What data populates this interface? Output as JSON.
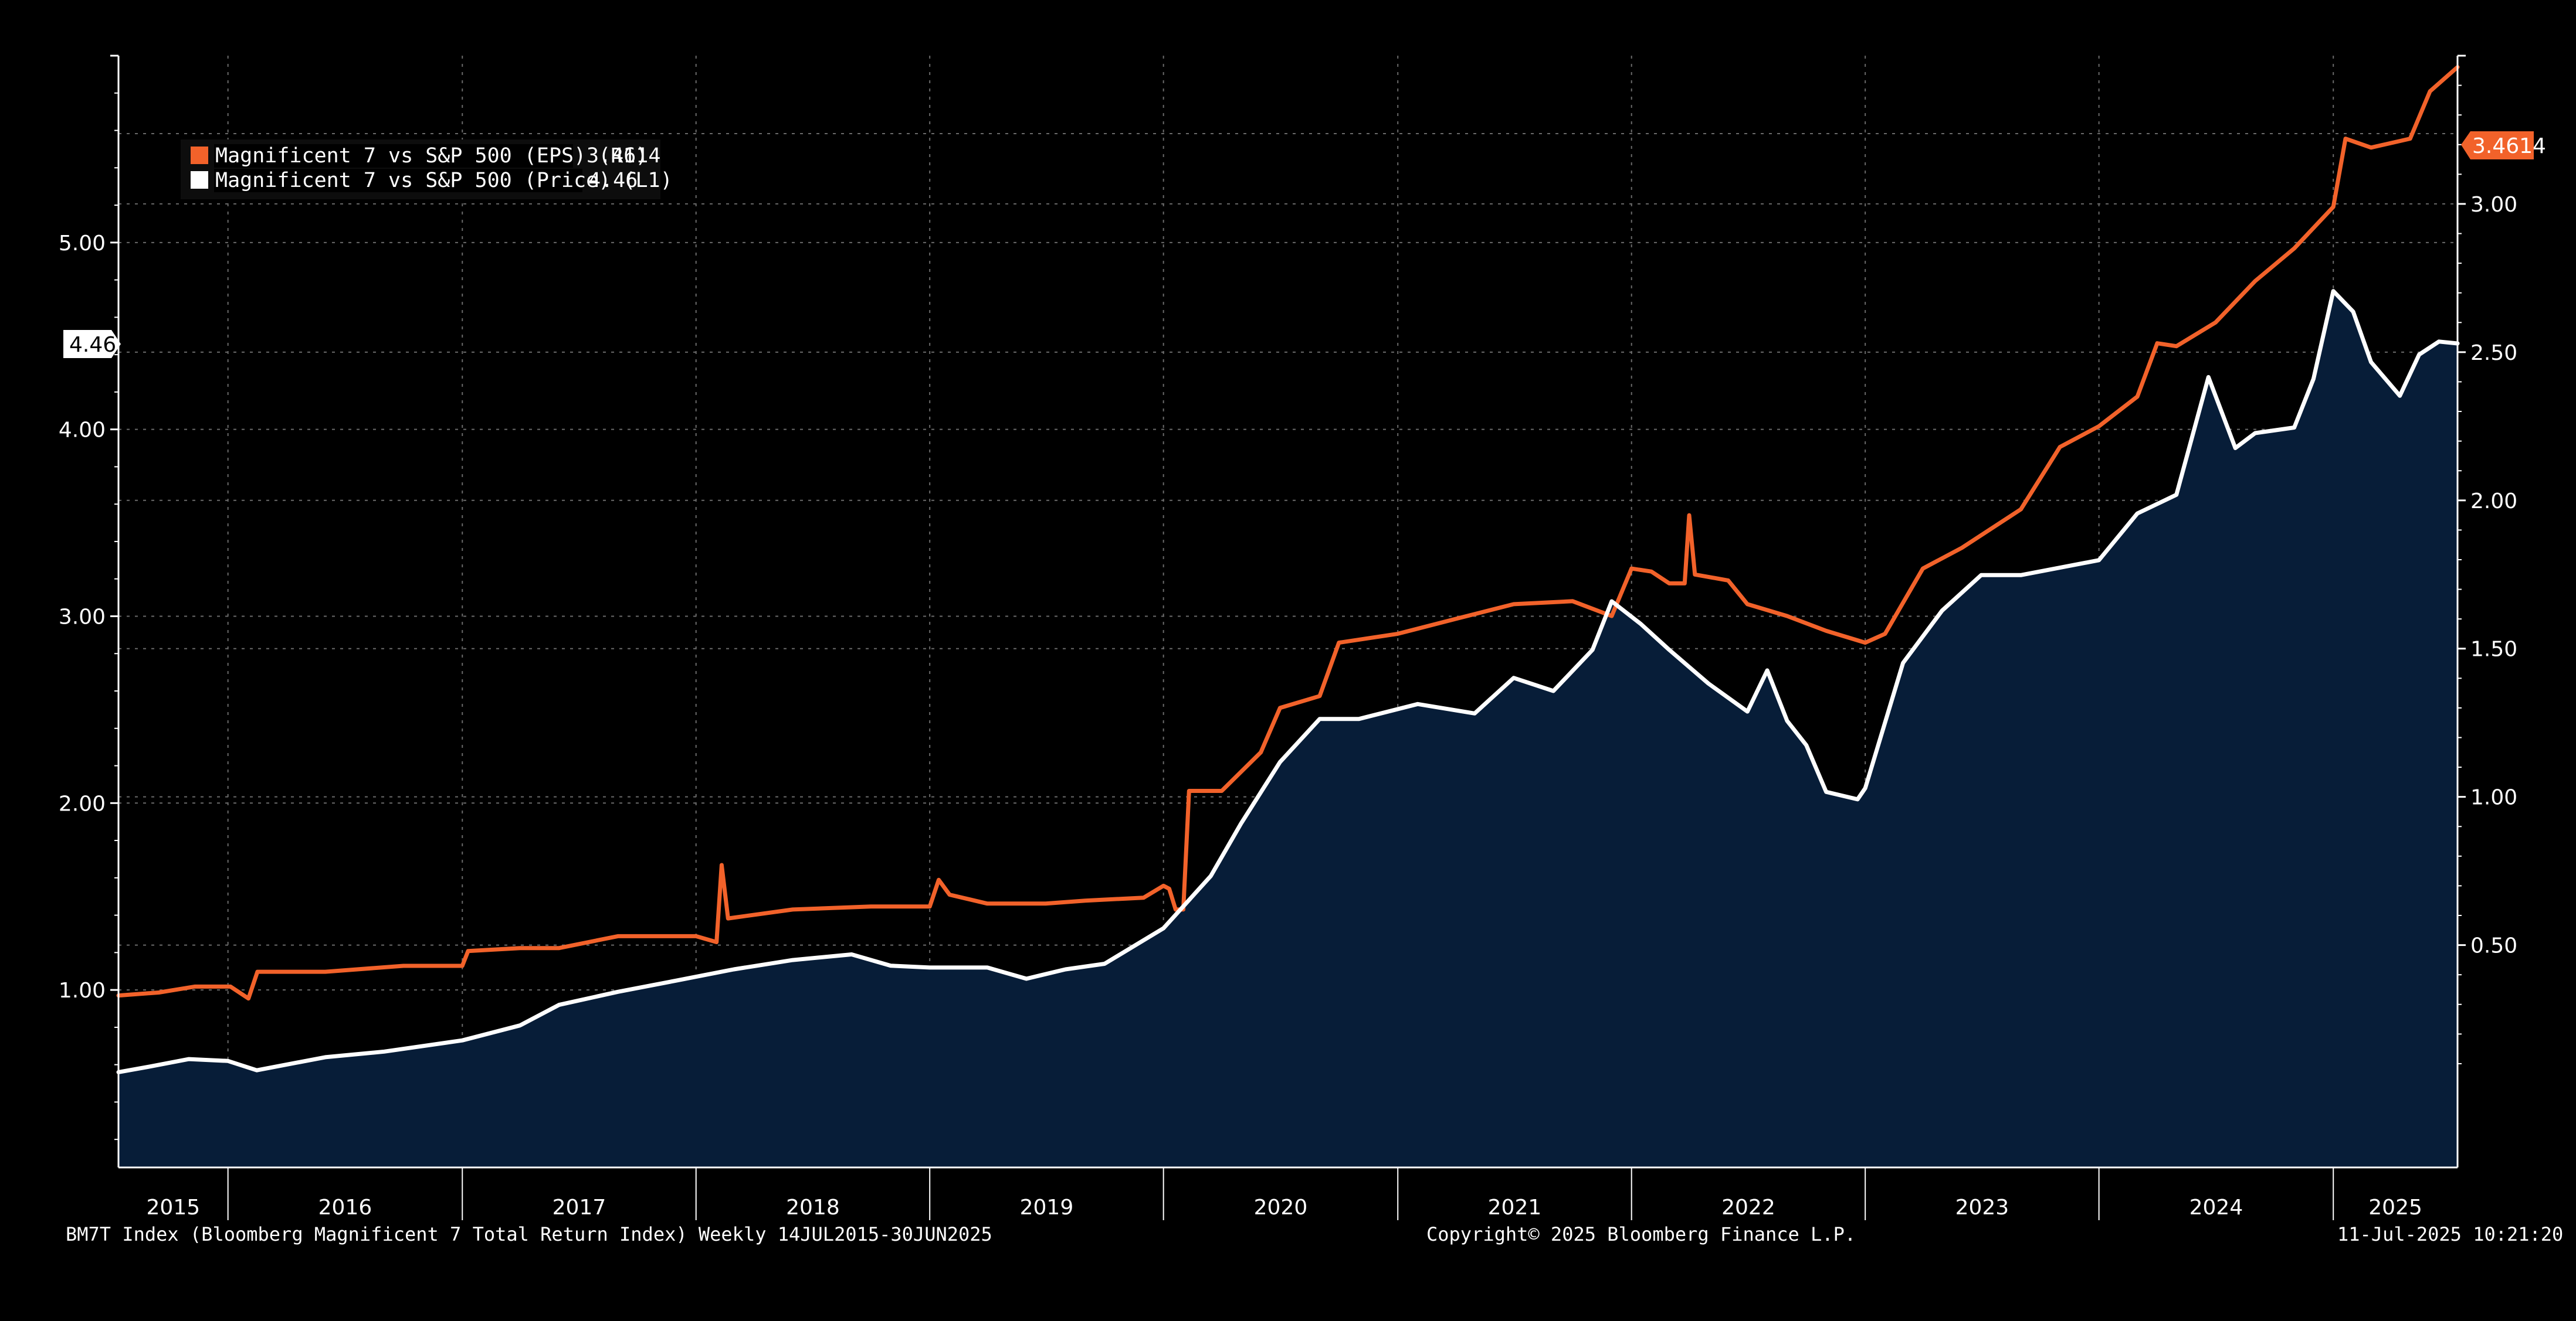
{
  "legend": {
    "eps_label": "Magnificent 7 vs S&P 500 (EPS) (R1)",
    "eps_value": "3.4614",
    "price_label": "Magnificent 7 vs S&P 500 (Price) (L1)",
    "price_value": "4.46"
  },
  "badges": {
    "left": "4.46",
    "right": "3.4614"
  },
  "footer": {
    "source": "BM7T Index (Bloomberg Magnificent 7 Total Return Index)  Weekly 14JUL2015-30JUN2025",
    "copyright": "Copyright© 2025 Bloomberg Finance L.P.",
    "timestamp": "11-Jul-2025 10:21:20"
  },
  "colors": {
    "background": "#000000",
    "eps_line": "#f2622a",
    "price_line": "#ffffff",
    "area_fill": "#071d38",
    "grid": "#6a6a6a",
    "badge_right_bg": "#f2622a",
    "badge_left_bg": "#ffffff"
  },
  "chart_data": {
    "type": "line",
    "x_range": [
      "2015-07-14",
      "2025-07-14"
    ],
    "x_tick_labels": [
      "2015",
      "2016",
      "2017",
      "2018",
      "2019",
      "2020",
      "2021",
      "2022",
      "2023",
      "2024",
      "2025"
    ],
    "left_axis": {
      "ticks": [
        "1.00",
        "2.00",
        "3.00",
        "4.00",
        "5.00"
      ],
      "range": [
        0.05,
        6.0
      ]
    },
    "right_axis": {
      "ticks": [
        "0.50",
        "1.00",
        "1.50",
        "2.00",
        "2.50",
        "3.00"
      ],
      "range": [
        -0.25,
        3.5
      ]
    },
    "grid": true,
    "legend_position": "top-left",
    "series": [
      {
        "name": "Magnificent 7 vs S&P 500 (EPS) (R1)",
        "axis": "right",
        "color": "#f2622a",
        "points": [
          [
            "2015-07-14",
            0.33
          ],
          [
            "2015-09-15",
            0.34
          ],
          [
            "2015-11-10",
            0.36
          ],
          [
            "2016-01-05",
            0.36
          ],
          [
            "2016-02-02",
            0.32
          ],
          [
            "2016-02-16",
            0.41
          ],
          [
            "2016-06-01",
            0.41
          ],
          [
            "2016-10-01",
            0.43
          ],
          [
            "2017-01-01",
            0.43
          ],
          [
            "2017-01-10",
            0.48
          ],
          [
            "2017-04-01",
            0.49
          ],
          [
            "2017-06-01",
            0.49
          ],
          [
            "2017-09-01",
            0.53
          ],
          [
            "2018-01-01",
            0.53
          ],
          [
            "2018-02-02",
            0.51
          ],
          [
            "2018-02-10",
            0.77
          ],
          [
            "2018-02-20",
            0.59
          ],
          [
            "2018-06-01",
            0.62
          ],
          [
            "2018-10-01",
            0.63
          ],
          [
            "2019-01-01",
            0.63
          ],
          [
            "2019-01-15",
            0.72
          ],
          [
            "2019-02-01",
            0.67
          ],
          [
            "2019-04-01",
            0.64
          ],
          [
            "2019-07-01",
            0.64
          ],
          [
            "2019-09-01",
            0.65
          ],
          [
            "2019-12-01",
            0.66
          ],
          [
            "2020-01-01",
            0.7
          ],
          [
            "2020-01-10",
            0.69
          ],
          [
            "2020-01-20",
            0.62
          ],
          [
            "2020-02-01",
            0.62
          ],
          [
            "2020-02-10",
            1.02
          ],
          [
            "2020-04-01",
            1.02
          ],
          [
            "2020-06-01",
            1.15
          ],
          [
            "2020-07-01",
            1.3
          ],
          [
            "2020-09-01",
            1.34
          ],
          [
            "2020-10-01",
            1.52
          ],
          [
            "2021-01-01",
            1.55
          ],
          [
            "2021-04-01",
            1.6
          ],
          [
            "2021-07-01",
            1.65
          ],
          [
            "2021-10-01",
            1.66
          ],
          [
            "2021-12-01",
            1.61
          ],
          [
            "2022-01-01",
            1.77
          ],
          [
            "2022-02-01",
            1.76
          ],
          [
            "2022-03-01",
            1.72
          ],
          [
            "2022-03-25",
            1.72
          ],
          [
            "2022-04-01",
            1.95
          ],
          [
            "2022-04-10",
            1.75
          ],
          [
            "2022-06-01",
            1.73
          ],
          [
            "2022-07-01",
            1.65
          ],
          [
            "2022-09-01",
            1.61
          ],
          [
            "2022-11-01",
            1.56
          ],
          [
            "2023-01-01",
            1.52
          ],
          [
            "2023-02-01",
            1.55
          ],
          [
            "2023-04-01",
            1.77
          ],
          [
            "2023-06-01",
            1.84
          ],
          [
            "2023-09-01",
            1.97
          ],
          [
            "2023-11-01",
            2.18
          ],
          [
            "2024-01-01",
            2.25
          ],
          [
            "2024-03-01",
            2.35
          ],
          [
            "2024-04-01",
            2.53
          ],
          [
            "2024-05-01",
            2.52
          ],
          [
            "2024-07-01",
            2.6
          ],
          [
            "2024-09-01",
            2.74
          ],
          [
            "2024-11-01",
            2.85
          ],
          [
            "2025-01-01",
            2.99
          ],
          [
            "2025-01-20",
            3.22
          ],
          [
            "2025-03-01",
            3.19
          ],
          [
            "2025-05-01",
            3.22
          ],
          [
            "2025-06-01",
            3.38
          ],
          [
            "2025-07-14",
            3.4614
          ]
        ]
      },
      {
        "name": "Magnificent 7 vs S&P 500 (Price) (L1)",
        "axis": "left",
        "color": "#ffffff",
        "points": [
          [
            "2015-07-14",
            0.56
          ],
          [
            "2015-09-01",
            0.59
          ],
          [
            "2015-11-01",
            0.63
          ],
          [
            "2016-01-01",
            0.62
          ],
          [
            "2016-02-15",
            0.57
          ],
          [
            "2016-06-01",
            0.64
          ],
          [
            "2016-09-01",
            0.67
          ],
          [
            "2017-01-01",
            0.73
          ],
          [
            "2017-04-01",
            0.81
          ],
          [
            "2017-06-01",
            0.92
          ],
          [
            "2017-09-01",
            0.99
          ],
          [
            "2017-12-01",
            1.05
          ],
          [
            "2018-03-01",
            1.11
          ],
          [
            "2018-06-01",
            1.16
          ],
          [
            "2018-09-01",
            1.19
          ],
          [
            "2018-11-01",
            1.13
          ],
          [
            "2019-01-01",
            1.12
          ],
          [
            "2019-04-01",
            1.12
          ],
          [
            "2019-06-01",
            1.06
          ],
          [
            "2019-08-01",
            1.11
          ],
          [
            "2019-10-01",
            1.14
          ],
          [
            "2020-01-01",
            1.33
          ],
          [
            "2020-03-15",
            1.61
          ],
          [
            "2020-05-01",
            1.89
          ],
          [
            "2020-07-01",
            2.22
          ],
          [
            "2020-09-01",
            2.45
          ],
          [
            "2020-11-01",
            2.45
          ],
          [
            "2021-02-01",
            2.53
          ],
          [
            "2021-05-01",
            2.48
          ],
          [
            "2021-07-01",
            2.67
          ],
          [
            "2021-09-01",
            2.6
          ],
          [
            "2021-11-01",
            2.82
          ],
          [
            "2021-12-01",
            3.08
          ],
          [
            "2022-01-15",
            2.96
          ],
          [
            "2022-03-01",
            2.82
          ],
          [
            "2022-05-01",
            2.64
          ],
          [
            "2022-07-01",
            2.49
          ],
          [
            "2022-08-01",
            2.71
          ],
          [
            "2022-09-01",
            2.44
          ],
          [
            "2022-10-01",
            2.31
          ],
          [
            "2022-11-01",
            2.06
          ],
          [
            "2022-12-20",
            2.02
          ],
          [
            "2023-01-01",
            2.08
          ],
          [
            "2023-03-01",
            2.75
          ],
          [
            "2023-05-01",
            3.03
          ],
          [
            "2023-07-01",
            3.22
          ],
          [
            "2023-09-01",
            3.22
          ],
          [
            "2023-11-01",
            3.26
          ],
          [
            "2024-01-01",
            3.3
          ],
          [
            "2024-03-01",
            3.55
          ],
          [
            "2024-05-01",
            3.65
          ],
          [
            "2024-06-20",
            4.28
          ],
          [
            "2024-08-01",
            3.9
          ],
          [
            "2024-09-01",
            3.98
          ],
          [
            "2024-11-01",
            4.01
          ],
          [
            "2024-12-01",
            4.27
          ],
          [
            "2025-01-01",
            4.74
          ],
          [
            "2025-02-01",
            4.63
          ],
          [
            "2025-03-01",
            4.36
          ],
          [
            "2025-04-15",
            4.18
          ],
          [
            "2025-05-15",
            4.4
          ],
          [
            "2025-06-15",
            4.47
          ],
          [
            "2025-07-14",
            4.46
          ]
        ]
      }
    ]
  }
}
